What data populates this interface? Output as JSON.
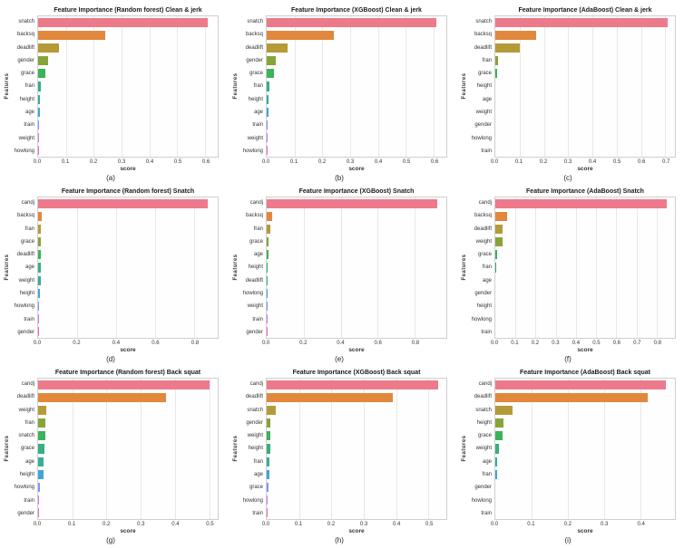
{
  "figure": {
    "background": "#ffffff",
    "plot_background": "#fefefe",
    "grid_color": "#e8e8e8",
    "axis_text_color": "#333333",
    "border_color": "#cfcfcf"
  },
  "palette": [
    "#ed7a8a",
    "#e1883c",
    "#b59b37",
    "#87a439",
    "#3bb35b",
    "#38af7e",
    "#37ac9c",
    "#3ea6d7",
    "#8793f4",
    "#cc7af2",
    "#f469c8"
  ],
  "chart_data": [
    {
      "id": "a",
      "type": "bar",
      "orientation": "horizontal",
      "title": "Feature Importance (Random forest) Clean & jerk",
      "caption": "(a)",
      "xlabel": "score",
      "ylabel": "Features",
      "categories": [
        "snatch",
        "backsq",
        "deadlift",
        "gender",
        "grace",
        "fran",
        "height",
        "age",
        "train",
        "weight",
        "howlong"
      ],
      "values": [
        0.61,
        0.24,
        0.075,
        0.035,
        0.025,
        0.009,
        0.007,
        0.005,
        0.003,
        0.003,
        0.001
      ],
      "xticks": [
        0,
        0.1,
        0.2,
        0.3,
        0.4,
        0.5,
        0.6
      ],
      "xlim": [
        0,
        0.645
      ],
      "grid": true,
      "legend": false
    },
    {
      "id": "b",
      "type": "bar",
      "orientation": "horizontal",
      "title": "Feature Importance (XGBoost) Clean & jerk",
      "caption": "(b)",
      "xlabel": "score",
      "ylabel": "Features",
      "categories": [
        "snatch",
        "backsq",
        "deadlift",
        "gender",
        "grace",
        "fran",
        "height",
        "age",
        "train",
        "weight",
        "howlong"
      ],
      "values": [
        0.61,
        0.24,
        0.075,
        0.033,
        0.025,
        0.009,
        0.007,
        0.005,
        0.003,
        0.002,
        0.001
      ],
      "xticks": [
        0,
        0.1,
        0.2,
        0.3,
        0.4,
        0.5,
        0.6
      ],
      "xlim": [
        0,
        0.645
      ],
      "grid": true,
      "legend": false
    },
    {
      "id": "c",
      "type": "bar",
      "orientation": "horizontal",
      "title": "Feature Importance (AdaBoost) Clean & jerk",
      "caption": "(c)",
      "xlabel": "score",
      "ylabel": "Features",
      "categories": [
        "snatch",
        "backsq",
        "deadlift",
        "fran",
        "grace",
        "height",
        "age",
        "weight",
        "gender",
        "howlong",
        "train"
      ],
      "values": [
        0.71,
        0.17,
        0.1,
        0.012,
        0.007,
        0,
        0,
        0,
        0,
        0,
        0
      ],
      "xticks": [
        0,
        0.1,
        0.2,
        0.3,
        0.4,
        0.5,
        0.6,
        0.7
      ],
      "xlim": [
        0,
        0.74
      ],
      "grid": true,
      "legend": false
    },
    {
      "id": "d",
      "type": "bar",
      "orientation": "horizontal",
      "title": "Feature Importance (Random forest) Snatch",
      "caption": "(d)",
      "xlabel": "score",
      "ylabel": "Features",
      "categories": [
        "candj",
        "backsq",
        "fran",
        "grace",
        "deadlift",
        "age",
        "weight",
        "height",
        "howlong",
        "train",
        "gender"
      ],
      "values": [
        0.87,
        0.02,
        0.016,
        0.015,
        0.013,
        0.013,
        0.012,
        0.009,
        0.004,
        0.001,
        0.001
      ],
      "xticks": [
        0,
        0.2,
        0.4,
        0.6,
        0.8
      ],
      "xlim": [
        0,
        0.92
      ],
      "grid": true,
      "legend": false
    },
    {
      "id": "e",
      "type": "bar",
      "orientation": "horizontal",
      "title": "Feature Importance (XGBoost) Snatch",
      "caption": "(e)",
      "xlabel": "score",
      "ylabel": "Features",
      "categories": [
        "candj",
        "backsq",
        "fran",
        "grace",
        "age",
        "height",
        "deadlift",
        "howlong",
        "weight",
        "train",
        "gender"
      ],
      "values": [
        0.92,
        0.03,
        0.022,
        0.012,
        0.011,
        0.007,
        0.006,
        0.005,
        0.002,
        0.001,
        0.001
      ],
      "xticks": [
        0,
        0.2,
        0.4,
        0.6,
        0.8
      ],
      "xlim": [
        0,
        0.97
      ],
      "grid": true,
      "legend": false
    },
    {
      "id": "f",
      "type": "bar",
      "orientation": "horizontal",
      "title": "Feature Importance (AdaBoost) Snatch",
      "caption": "(f)",
      "xlabel": "score",
      "ylabel": "Features",
      "categories": [
        "candj",
        "backsq",
        "deadlift",
        "weight",
        "grace",
        "fran",
        "age",
        "gender",
        "height",
        "howlong",
        "train"
      ],
      "values": [
        0.85,
        0.06,
        0.038,
        0.034,
        0.008,
        0.005,
        0,
        0,
        0,
        0,
        0
      ],
      "xticks": [
        0,
        0.1,
        0.2,
        0.3,
        0.4,
        0.5,
        0.6,
        0.7,
        0.8
      ],
      "xlim": [
        0,
        0.89
      ],
      "grid": true,
      "legend": false
    },
    {
      "id": "g",
      "type": "bar",
      "orientation": "horizontal",
      "title": "Feature Importance (Random forest) Back squat",
      "caption": "(g)",
      "xlabel": "score",
      "ylabel": "Features",
      "categories": [
        "candj",
        "deadlift",
        "weight",
        "fran",
        "snatch",
        "grace",
        "age",
        "height",
        "howlong",
        "train",
        "gender"
      ],
      "values": [
        0.5,
        0.375,
        0.023,
        0.021,
        0.02,
        0.018,
        0.016,
        0.015,
        0.004,
        0.002,
        0.001
      ],
      "xticks": [
        0,
        0.1,
        0.2,
        0.3,
        0.4,
        0.5
      ],
      "xlim": [
        0,
        0.525
      ],
      "grid": true,
      "legend": false
    },
    {
      "id": "h",
      "type": "bar",
      "orientation": "horizontal",
      "title": "Feature Importance (XGBoost) Back squat",
      "caption": "(h)",
      "xlabel": "score",
      "ylabel": "Features",
      "categories": [
        "candj",
        "deadlift",
        "snatch",
        "gender",
        "weight",
        "height",
        "fran",
        "age",
        "grace",
        "howlong",
        "train"
      ],
      "values": [
        0.53,
        0.39,
        0.028,
        0.012,
        0.012,
        0.01,
        0.008,
        0.008,
        0.005,
        0.002,
        0.001
      ],
      "xticks": [
        0,
        0.1,
        0.2,
        0.3,
        0.4,
        0.5
      ],
      "xlim": [
        0,
        0.555
      ],
      "grid": true,
      "legend": false
    },
    {
      "id": "i",
      "type": "bar",
      "orientation": "horizontal",
      "title": "Feature Importance (AdaBoost) Back squat",
      "caption": "(i)",
      "xlabel": "score",
      "ylabel": "Features",
      "categories": [
        "candj",
        "deadlift",
        "snatch",
        "height",
        "grace",
        "weight",
        "age",
        "fran",
        "gender",
        "howlong",
        "train"
      ],
      "values": [
        0.47,
        0.42,
        0.047,
        0.023,
        0.021,
        0.011,
        0.006,
        0.005,
        0,
        0,
        0
      ],
      "xticks": [
        0,
        0.1,
        0.2,
        0.3,
        0.4
      ],
      "xlim": [
        0,
        0.495
      ],
      "grid": true,
      "legend": false
    }
  ]
}
